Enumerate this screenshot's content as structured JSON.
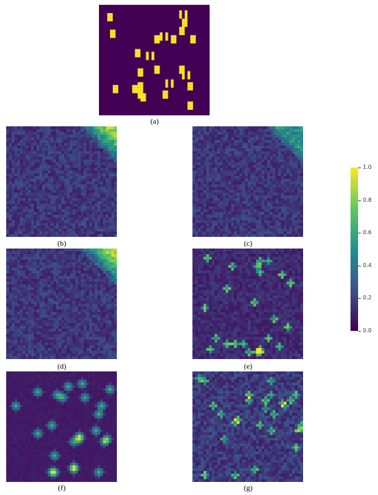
{
  "panels": [
    {
      "id": "a",
      "caption": "(a)",
      "style": "mask",
      "seed": 11
    },
    {
      "id": "b",
      "caption": "(b)",
      "style": "noise-corner",
      "seed": 21
    },
    {
      "id": "c",
      "caption": "(c)",
      "style": "noise-corner-weak",
      "seed": 31
    },
    {
      "id": "d",
      "caption": "(d)",
      "style": "noise-corner",
      "seed": 41
    },
    {
      "id": "e",
      "caption": "(e)",
      "style": "spots-noise",
      "seed": 51
    },
    {
      "id": "f",
      "caption": "(f)",
      "style": "spots-blur",
      "seed": 61
    },
    {
      "id": "g",
      "caption": "(g)",
      "style": "spots-stripe",
      "seed": 71
    }
  ],
  "colorbar": {
    "min": 0.0,
    "max": 1.0,
    "ticks": [
      "0.0",
      "0.2",
      "0.4",
      "0.6",
      "0.8",
      "1.0"
    ],
    "colormap": [
      "#440154",
      "#3b528b",
      "#21918c",
      "#5ec962",
      "#fde725"
    ]
  }
}
